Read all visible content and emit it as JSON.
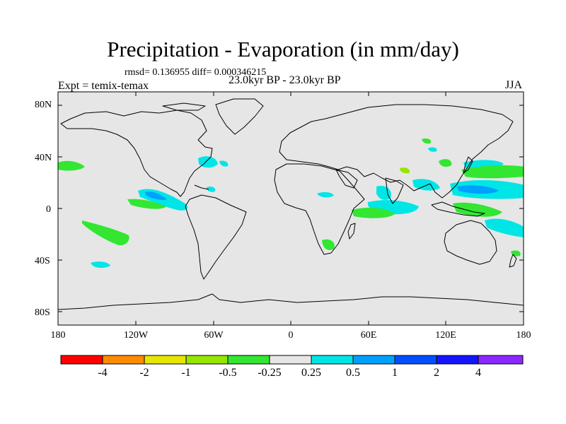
{
  "header": {
    "title": "Precipitation - Evaporation (in mm/day)",
    "subtitle": "rmsd= 0.136955  diff= 0.000346215",
    "period": "23.0kyr BP - 23.0kyr BP",
    "expt": "Expt = temix-temax",
    "season": "JJA"
  },
  "map": {
    "projection": "cylindrical equidistant",
    "lon_range": [
      -180,
      180
    ],
    "lat_range": [
      -90,
      90
    ],
    "land_color": "#e6e6e6",
    "coast_color": "#000000",
    "lon_ticks": [
      "180",
      "120W",
      "60W",
      "0",
      "60E",
      "120E",
      "180"
    ],
    "lat_ticks": [
      "80N",
      "40N",
      "0",
      "40S",
      "80S"
    ]
  },
  "colorbar": {
    "colors": [
      "#ff0000",
      "#ff8c00",
      "#e6e600",
      "#96e600",
      "#32e632",
      "#e6e6e6",
      "#00e6e6",
      "#00a0ff",
      "#0050ff",
      "#1414ff",
      "#8c28ff"
    ],
    "labels": [
      "-4",
      "-2",
      "-1",
      "-0.5",
      "-0.25",
      "0.25",
      "0.5",
      "1",
      "2",
      "4"
    ]
  }
}
